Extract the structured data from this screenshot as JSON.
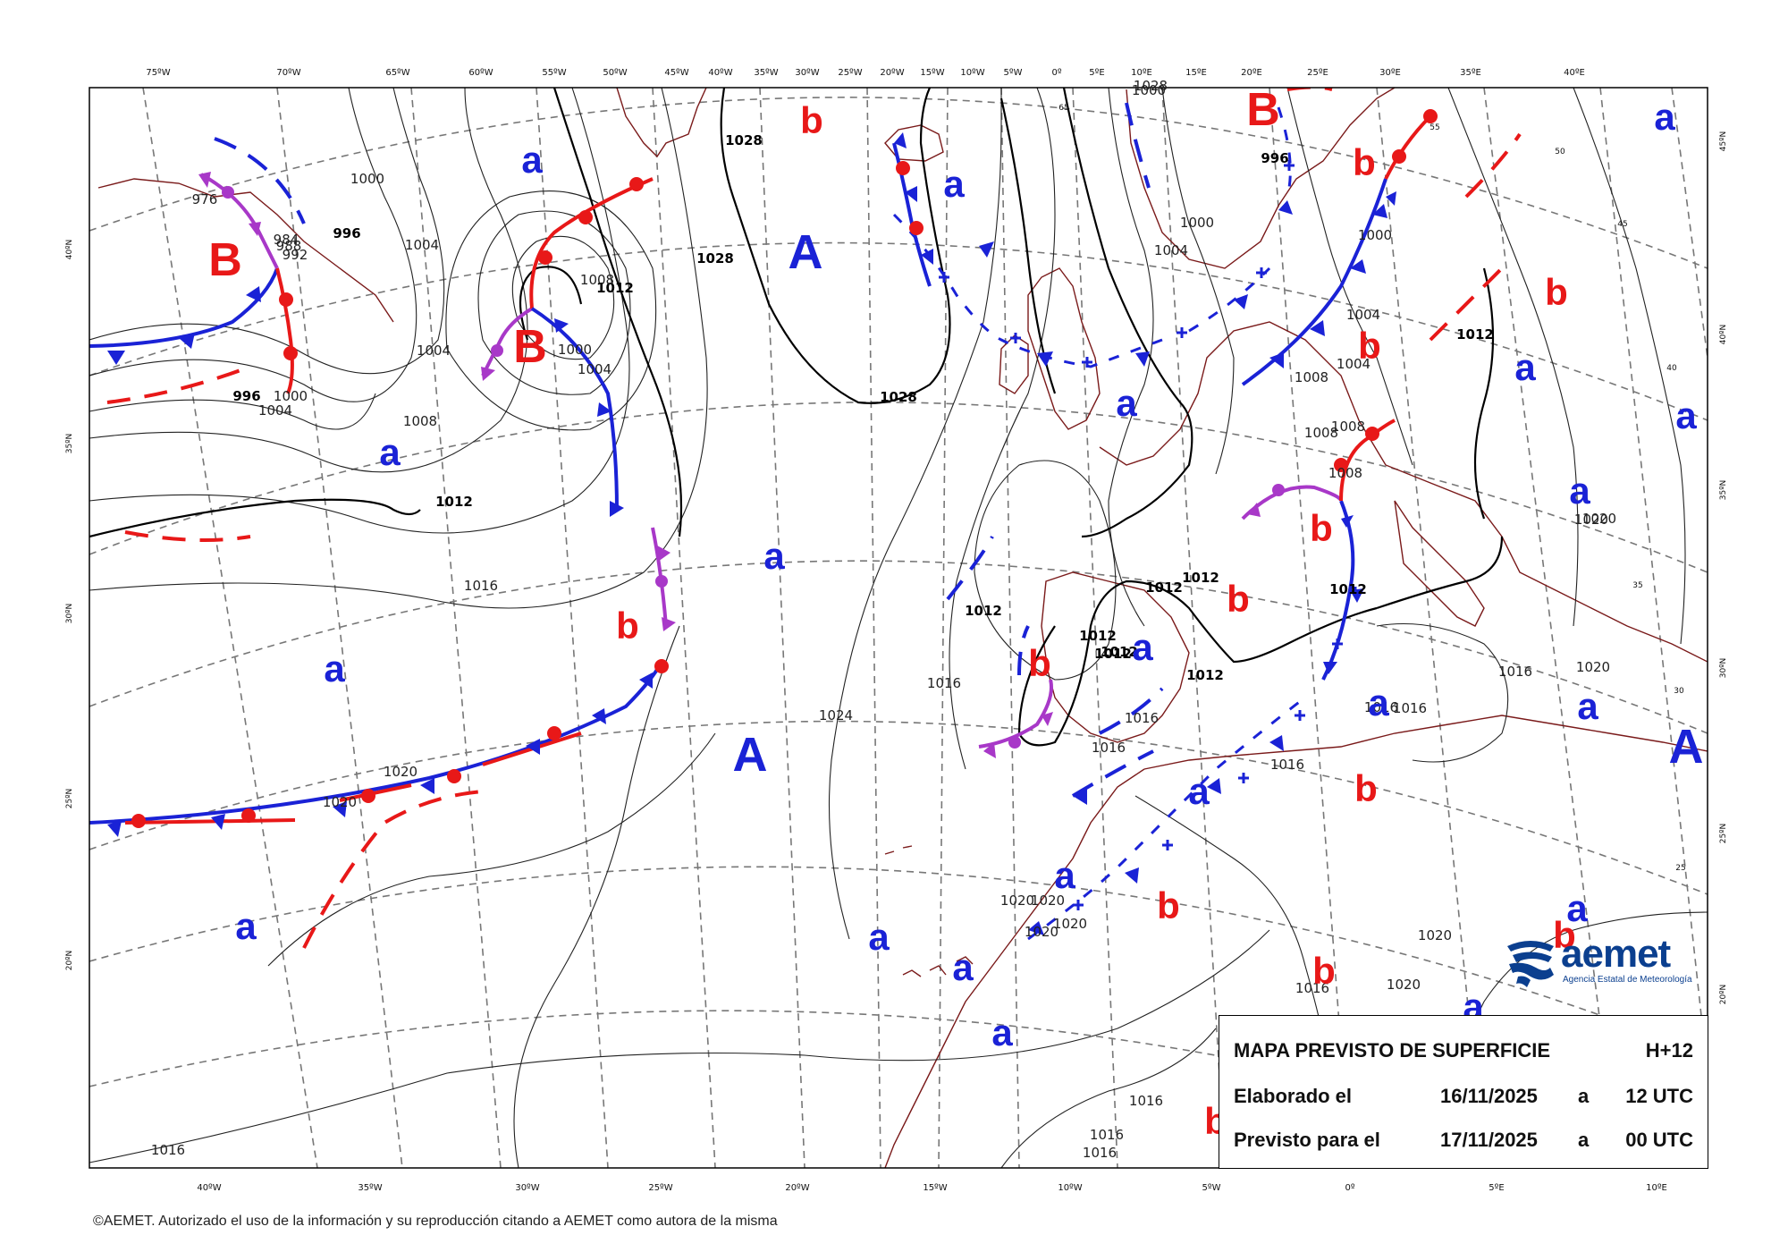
{
  "map": {
    "ticks_top": [
      "75ºW",
      "70ºW",
      "65ºW",
      "60ºW",
      "55ºW",
      "50ºW",
      "45ºW",
      "40ºW",
      "35ºW",
      "30ºW",
      "25ºW",
      "20ºW",
      "15ºW",
      "10ºW",
      "5ºW",
      "0º",
      "5ºE",
      "10ºE",
      "15ºE",
      "20ºE",
      "25ºE",
      "30ºE",
      "35ºE",
      "40ºE"
    ],
    "ticks_bottom": [
      "40ºW",
      "35ºW",
      "30ºW",
      "25ºW",
      "20ºW",
      "15ºW",
      "10ºW",
      "5ºW",
      "0º",
      "5ºE",
      "10ºE"
    ],
    "ticks_left": [
      "40ºN",
      "35ºN",
      "30ºN",
      "25ºN",
      "20ºN"
    ],
    "ticks_right": [
      "45ºN",
      "40ºN",
      "35ºN",
      "30ºN",
      "25ºN",
      "20ºN"
    ],
    "inner_lat_labels": [
      "55",
      "50",
      "45",
      "40",
      "35",
      "30",
      "25",
      "65"
    ],
    "isobar_labels": [
      "1028",
      "1028",
      "1028",
      "1028",
      "1024",
      "1020",
      "1020",
      "1020",
      "1020",
      "1020",
      "1020",
      "1020",
      "1020",
      "1020",
      "1020",
      "1020",
      "1016",
      "1016",
      "1016",
      "1016",
      "1016",
      "1016",
      "1016",
      "1016",
      "1016",
      "1016",
      "1016",
      "1016",
      "1016",
      "1012",
      "1012",
      "1012",
      "1012",
      "1012",
      "1012",
      "1012",
      "1012",
      "1012",
      "1012",
      "1012",
      "1008",
      "1008",
      "1008",
      "1008",
      "1008",
      "1008",
      "1004",
      "1004",
      "1004",
      "1004",
      "1004",
      "1004",
      "1004",
      "1000",
      "1000",
      "1000",
      "1000",
      "1000",
      "1000",
      "996",
      "996",
      "996",
      "992",
      "988",
      "984",
      "976"
    ],
    "pressure_centers": {
      "A": [
        "A",
        "A",
        "A"
      ],
      "B": [
        "B",
        "B",
        "B"
      ],
      "a": [
        "a",
        "a",
        "a",
        "a",
        "a",
        "a",
        "a",
        "a",
        "a",
        "a",
        "a",
        "a",
        "a",
        "a",
        "a",
        "a",
        "a",
        "a",
        "a",
        "a",
        "a"
      ],
      "b": [
        "b",
        "b",
        "b",
        "b",
        "b",
        "b",
        "b",
        "b",
        "b",
        "b",
        "b",
        "b",
        "b"
      ]
    },
    "colors": {
      "cold_front": "#1a22d6",
      "warm_front": "#e81818",
      "occluded_front": "#a838c8",
      "coastline": "#7a1a1a",
      "graticule": "#777777",
      "isobar": "#222222"
    }
  },
  "info": {
    "title": "MAPA PREVISTO DE SUPERFICIE",
    "horizon": "H+12",
    "elaborated_label": "Elaborado el",
    "elaborated_date": "16/11/2025",
    "at1": "a",
    "elaborated_time": "12 UTC",
    "forecast_label": "Previsto para el",
    "forecast_date": "17/11/2025",
    "at2": "a",
    "forecast_time": "00 UTC"
  },
  "logo": {
    "word": "aemet",
    "subtitle": "Agencia Estatal de Meteorología"
  },
  "copyright": "©AEMET. Autorizado el uso de la información y su reproducción citando a AEMET como autora de la misma"
}
